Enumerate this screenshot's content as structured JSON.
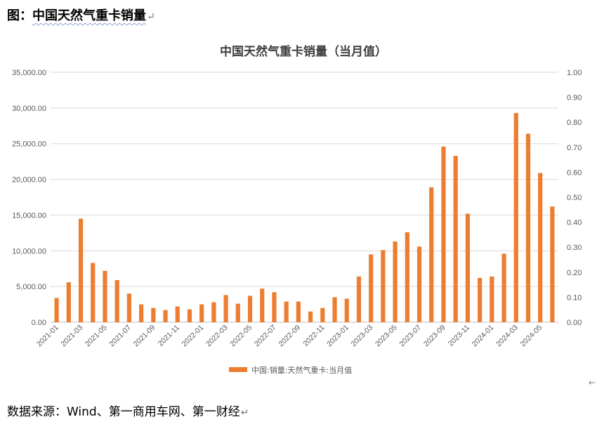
{
  "heading": {
    "prefix": "图：",
    "text": "中国天然气重卡销量",
    "mark": "↵"
  },
  "source": {
    "text": "数据来源：Wind、第一商用车网、第一财经",
    "mark": "↵"
  },
  "stray_mark": "←",
  "colors": {
    "bar": "#ED7D31",
    "grid": "#D9D9D9",
    "axis": "#BFBFBF"
  },
  "chart_data": {
    "type": "bar",
    "title": "中国天然气重卡销量（当月值）",
    "left_axis": {
      "min": 0,
      "max": 35000,
      "step": 5000,
      "tick_labels": [
        "0.00",
        "5,000.00",
        "10,000.00",
        "15,000.00",
        "20,000.00",
        "25,000.00",
        "30,000.00",
        "35,000.00"
      ]
    },
    "right_axis": {
      "min": 0,
      "max": 1.0,
      "step": 0.1,
      "tick_labels": [
        "0.00",
        "0.10",
        "0.20",
        "0.30",
        "0.40",
        "0.50",
        "0.60",
        "0.70",
        "0.80",
        "0.90",
        "1.00"
      ]
    },
    "x_tick_labels": [
      "2021-01",
      "2021-03",
      "2021-05",
      "2021-07",
      "2021-09",
      "2021-11",
      "2022-01",
      "2022-03",
      "2022-05",
      "2022-07",
      "2022-09",
      "2022-11",
      "2023-01",
      "2023-03",
      "2023-05",
      "2023-07",
      "2023-09",
      "2023-11",
      "2024-01",
      "2024-03",
      "2024-05"
    ],
    "categories": [
      "2021-01",
      "2021-02",
      "2021-03",
      "2021-04",
      "2021-05",
      "2021-06",
      "2021-07",
      "2021-08",
      "2021-09",
      "2021-10",
      "2021-11",
      "2021-12",
      "2022-01",
      "2022-02",
      "2022-03",
      "2022-04",
      "2022-05",
      "2022-06",
      "2022-07",
      "2022-08",
      "2022-09",
      "2022-10",
      "2022-11",
      "2022-12",
      "2023-01",
      "2023-02",
      "2023-03",
      "2023-04",
      "2023-05",
      "2023-06",
      "2023-07",
      "2023-08",
      "2023-09",
      "2023-10",
      "2023-11",
      "2023-12",
      "2024-01",
      "2024-02",
      "2024-03",
      "2024-04",
      "2024-05",
      "2024-06"
    ],
    "series": [
      {
        "name": "中国:销量:天然气重卡:当月值",
        "values": [
          3400,
          5600,
          14500,
          8300,
          7200,
          5900,
          4000,
          2500,
          2000,
          1700,
          2200,
          1800,
          2500,
          2800,
          3800,
          2600,
          3700,
          4700,
          4200,
          2900,
          2900,
          1500,
          2000,
          3500,
          3300,
          6400,
          9500,
          10100,
          11300,
          12600,
          10600,
          18900,
          24600,
          23300,
          15200,
          6200,
          6400,
          9600,
          29300,
          26400,
          20900,
          16200
        ]
      }
    ],
    "legend_position": "bottom",
    "grid": true
  }
}
